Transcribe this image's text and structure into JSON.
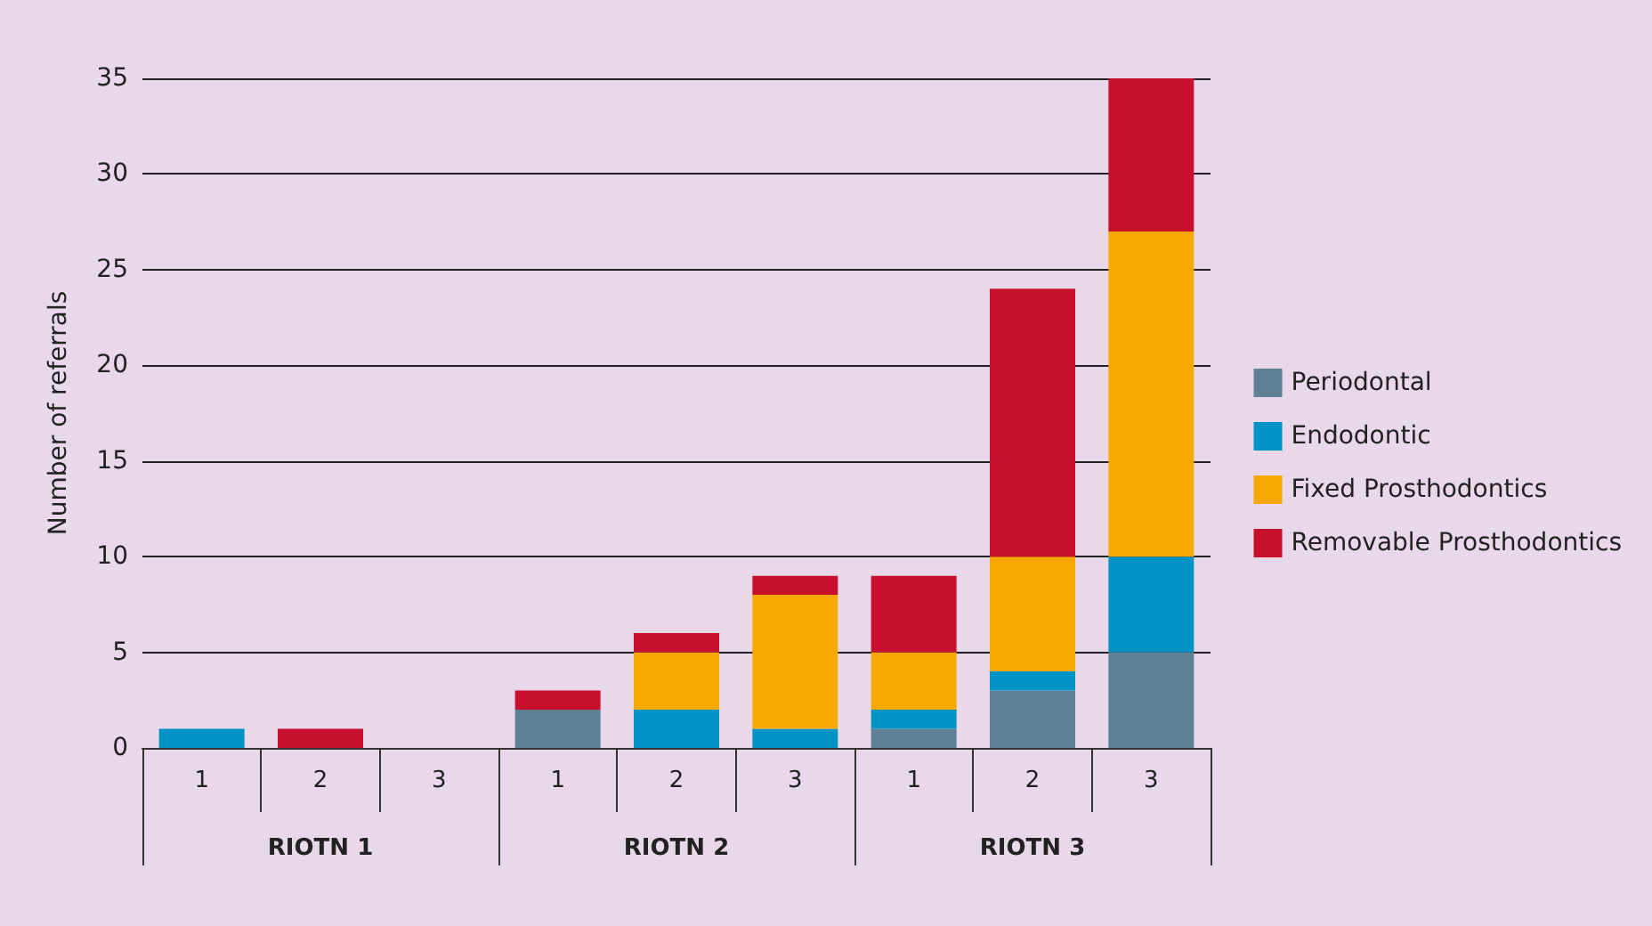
{
  "chart_data": {
    "type": "bar",
    "stacked": true,
    "ylabel": "Number of referrals",
    "categories": [
      "1",
      "2",
      "3",
      "1",
      "2",
      "3",
      "1",
      "2",
      "3"
    ],
    "annotations": [
      "RIOTN 1",
      "RIOTN 2",
      "RIOTN 3"
    ],
    "series": [
      {
        "name": "Periodontal",
        "color": "#5f7f94",
        "values": [
          0,
          0,
          0,
          2,
          0,
          0,
          1,
          3,
          5
        ]
      },
      {
        "name": "Endodontic",
        "color": "#0093c4",
        "values": [
          1,
          0,
          0,
          0,
          2,
          1,
          1,
          1,
          5
        ]
      },
      {
        "name": "Fixed Prosthodontics",
        "color": "#f5a800",
        "values": [
          0,
          0,
          0,
          0,
          3,
          7,
          3,
          6,
          17
        ]
      },
      {
        "name": "Removable Prosthodontics",
        "color": "#c8102e",
        "values": [
          0,
          1,
          0,
          1,
          1,
          1,
          4,
          14,
          8
        ]
      }
    ],
    "ylim": [
      0,
      35
    ],
    "yticks": [
      0,
      5,
      10,
      15,
      20,
      25,
      30,
      35
    ],
    "grid": "y",
    "legend": "right"
  }
}
